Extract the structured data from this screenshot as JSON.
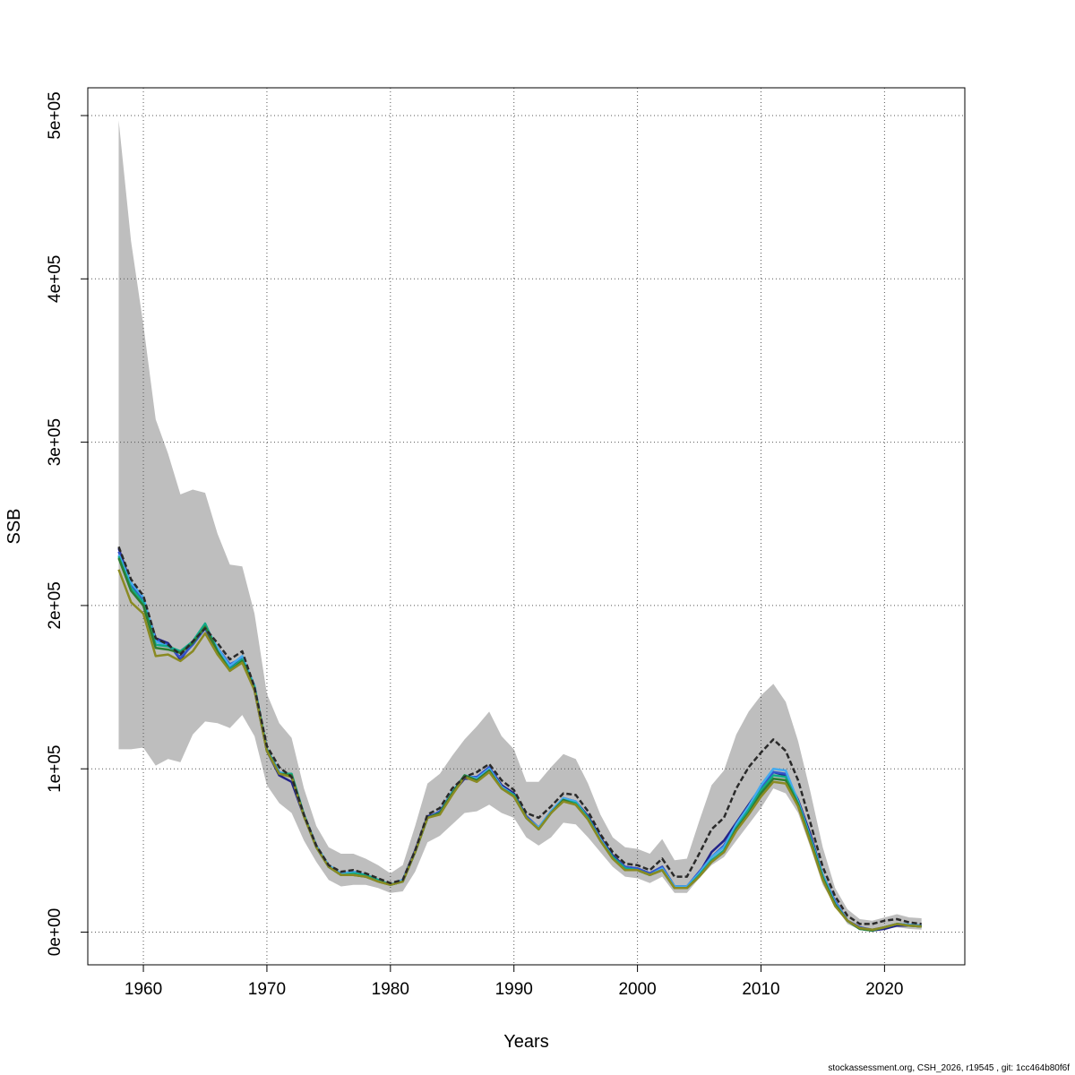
{
  "chart_data": {
    "type": "line",
    "title": "",
    "xlabel": "Years",
    "ylabel": "SSB",
    "xlim": [
      1955.5,
      2026.5
    ],
    "ylim": [
      -20000,
      517000
    ],
    "x_ticks": [
      1960,
      1970,
      1980,
      1990,
      2000,
      2010,
      2020
    ],
    "x_tick_labels": [
      "1960",
      "1970",
      "1980",
      "1990",
      "2000",
      "2010",
      "2020"
    ],
    "y_ticks": [
      0,
      100000,
      200000,
      300000,
      400000,
      500000
    ],
    "y_tick_labels": [
      "0e+00",
      "1e+05",
      "2e+05",
      "3e+05",
      "4e+05",
      "5e+05"
    ],
    "grid": true,
    "x": [
      1958,
      1959,
      1960,
      1961,
      1962,
      1963,
      1964,
      1965,
      1966,
      1967,
      1968,
      1969,
      1970,
      1971,
      1972,
      1973,
      1974,
      1975,
      1976,
      1977,
      1978,
      1979,
      1980,
      1981,
      1982,
      1983,
      1984,
      1985,
      1986,
      1987,
      1988,
      1989,
      1990,
      1991,
      1992,
      1993,
      1994,
      1995,
      1996,
      1997,
      1998,
      1999,
      2000,
      2001,
      2002,
      2003,
      2004,
      2005,
      2006,
      2007,
      2008,
      2009,
      2010,
      2011,
      2012,
      2013,
      2014,
      2015,
      2016,
      2017,
      2018,
      2019,
      2020,
      2021,
      2022,
      2023
    ],
    "confidence_band": {
      "color": "#bebebe",
      "lower": [
        112000,
        112000,
        113000,
        102000,
        106000,
        104000,
        121000,
        129000,
        128000,
        125000,
        133000,
        120000,
        90000,
        79000,
        73000,
        56000,
        43000,
        32000,
        28000,
        29000,
        29000,
        27000,
        24000,
        25000,
        37000,
        55000,
        59000,
        66000,
        73000,
        74000,
        78000,
        73000,
        70000,
        58000,
        53000,
        58000,
        67000,
        66000,
        58000,
        49000,
        40000,
        34000,
        33000,
        30000,
        34000,
        24000,
        24000,
        33000,
        41000,
        46000,
        56000,
        66000,
        76000,
        88000,
        85000,
        73000,
        52000,
        29000,
        16000,
        5000,
        1500,
        1000,
        2000,
        3000,
        2000,
        1500
      ],
      "upper": [
        497000,
        423000,
        372000,
        314000,
        293000,
        268000,
        271000,
        269000,
        244000,
        225000,
        224000,
        195000,
        146000,
        128000,
        119000,
        88000,
        65000,
        52000,
        48000,
        48000,
        45000,
        41000,
        36000,
        41000,
        65000,
        91000,
        97000,
        108000,
        118000,
        126000,
        135000,
        120000,
        112000,
        92000,
        92000,
        101000,
        109000,
        106000,
        91000,
        72000,
        58000,
        52000,
        51000,
        48000,
        57000,
        44000,
        45000,
        68000,
        90000,
        99000,
        121000,
        135000,
        145000,
        152000,
        141000,
        117000,
        86000,
        52000,
        27000,
        14000,
        8000,
        7000,
        9000,
        11000,
        9000,
        8500
      ]
    },
    "series": [
      {
        "color": "#2a2a2a",
        "dash": true,
        "values": [
          236000,
          216000,
          206000,
          180000,
          176000,
          170000,
          178000,
          186000,
          177000,
          167000,
          172000,
          150000,
          114000,
          101000,
          95000,
          72000,
          53000,
          41000,
          37000,
          38000,
          36000,
          33000,
          30000,
          32000,
          50000,
          72000,
          76000,
          88000,
          95000,
          98000,
          103000,
          93000,
          87000,
          73000,
          70000,
          77000,
          85000,
          84000,
          74000,
          60000,
          49000,
          42000,
          41000,
          38000,
          45000,
          34000,
          34000,
          48000,
          63000,
          70000,
          88000,
          101000,
          110000,
          118000,
          111000,
          93000,
          67000,
          40000,
          22000,
          10000,
          5000,
          5000,
          7000,
          8000,
          6000,
          5000
        ]
      },
      {
        "color": "#222288",
        "values": [
          235000,
          213000,
          203000,
          180000,
          177000,
          167000,
          177000,
          186000,
          172000,
          162000,
          168000,
          148000,
          111000,
          96000,
          92000,
          71000,
          53000,
          40000,
          36000,
          37000,
          35000,
          32000,
          29000,
          32000,
          50000,
          71000,
          73000,
          85000,
          94000,
          94000,
          101000,
          90000,
          85000,
          71000,
          64000,
          73000,
          82000,
          80000,
          71000,
          58000,
          47000,
          40000,
          39000,
          36000,
          40000,
          28000,
          28000,
          36000,
          49000,
          56000,
          67000,
          78000,
          89000,
          98000,
          96000,
          81000,
          60000,
          35000,
          18000,
          7000,
          3000,
          1000,
          2000,
          4000,
          4000,
          3500
        ]
      },
      {
        "color": "#3355cc",
        "values": [
          233000,
          212000,
          203000,
          179000,
          176000,
          168000,
          176000,
          186000,
          174000,
          164000,
          168000,
          149000,
          112000,
          98000,
          95000,
          71000,
          52000,
          40000,
          35000,
          36000,
          35000,
          32000,
          29000,
          31000,
          49000,
          70000,
          74000,
          86000,
          95000,
          95000,
          101000,
          89000,
          84000,
          71000,
          64000,
          74000,
          82000,
          80000,
          70000,
          57000,
          46000,
          40000,
          39000,
          36000,
          40000,
          28000,
          28000,
          37000,
          46000,
          53000,
          66000,
          77000,
          88000,
          98000,
          97000,
          80000,
          58000,
          35000,
          19000,
          7000,
          3000,
          1500,
          3000,
          5000,
          4500,
          4000
        ]
      },
      {
        "color": "#44aaee",
        "values": [
          231000,
          214000,
          205000,
          178000,
          175000,
          171000,
          178000,
          188000,
          174000,
          163000,
          169000,
          151000,
          112000,
          98000,
          96000,
          72000,
          53000,
          41000,
          36000,
          37000,
          35000,
          32000,
          29000,
          32000,
          49000,
          70000,
          73000,
          86000,
          96000,
          94000,
          100000,
          89000,
          84000,
          70000,
          64000,
          74000,
          82000,
          80000,
          70000,
          57000,
          46000,
          39000,
          38000,
          35000,
          39000,
          28000,
          28000,
          36000,
          46000,
          52000,
          66000,
          77000,
          90000,
          100000,
          99000,
          80000,
          58000,
          35000,
          18000,
          7000,
          2000,
          1000,
          3000,
          5000,
          4500,
          4000
        ]
      },
      {
        "color": "#11aa88",
        "values": [
          230000,
          211000,
          202000,
          176000,
          175000,
          172000,
          178000,
          189000,
          172000,
          161000,
          167000,
          150000,
          112000,
          97000,
          97000,
          72000,
          52000,
          40000,
          35000,
          36000,
          35000,
          32000,
          29000,
          31000,
          49000,
          70000,
          73000,
          85000,
          96000,
          93000,
          99000,
          88000,
          84000,
          70000,
          63000,
          73000,
          81000,
          79000,
          70000,
          56000,
          46000,
          39000,
          38000,
          35000,
          38000,
          27000,
          27000,
          35000,
          44000,
          50000,
          64000,
          75000,
          87000,
          96000,
          95000,
          79000,
          57000,
          34000,
          17000,
          7000,
          2000,
          1000,
          3000,
          5000,
          4000,
          3500
        ]
      },
      {
        "color": "#2e7d32",
        "values": [
          229000,
          209000,
          200000,
          174000,
          173000,
          171000,
          177000,
          187000,
          172000,
          160000,
          166000,
          149000,
          111000,
          97000,
          96000,
          71000,
          52000,
          40000,
          35000,
          35000,
          34000,
          31000,
          29000,
          31000,
          49000,
          70000,
          73000,
          85000,
          96000,
          93000,
          99000,
          88000,
          83000,
          70000,
          63000,
          73000,
          81000,
          78000,
          69000,
          56000,
          45000,
          38000,
          38000,
          35000,
          38000,
          27000,
          27000,
          34000,
          43000,
          49000,
          63000,
          73000,
          85000,
          94000,
          93000,
          78000,
          56000,
          33000,
          17000,
          7000,
          2000,
          1000,
          3000,
          5000,
          4000,
          3500
        ]
      },
      {
        "color": "#8a8a22",
        "values": [
          222000,
          202000,
          195000,
          169000,
          170000,
          166000,
          172000,
          183000,
          170000,
          160000,
          165000,
          148000,
          111000,
          97000,
          95000,
          71000,
          52000,
          40000,
          35000,
          35000,
          34000,
          31000,
          29000,
          31000,
          49000,
          70000,
          72000,
          84000,
          95000,
          92000,
          98000,
          88000,
          83000,
          70000,
          63000,
          73000,
          80000,
          78000,
          69000,
          56000,
          45000,
          38000,
          38000,
          35000,
          38000,
          27000,
          27000,
          34000,
          43000,
          49000,
          62000,
          72000,
          83000,
          92000,
          91000,
          77000,
          55000,
          32000,
          16000,
          7000,
          2500,
          1500,
          3000,
          5000,
          4000,
          3500
        ]
      }
    ]
  },
  "footer": {
    "credit": "stockassessment.org, CSH_2026, r19545 , git: 1cc464b80f6f"
  }
}
